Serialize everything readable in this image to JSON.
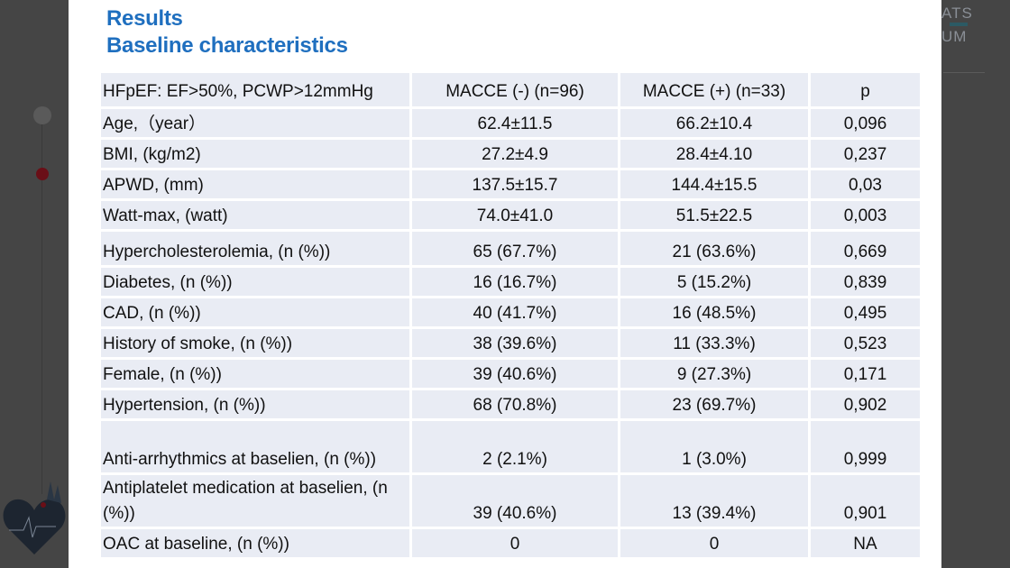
{
  "slide": {
    "title_line1": "Results",
    "title_line2": "Baseline characteristics"
  },
  "background": {
    "logo_fragment_top": "ATS",
    "logo_fragment_bottom": "UM"
  },
  "table": {
    "headers": [
      "HFpEF: EF>50%, PCWP>12mmHg",
      "MACCE (-) (n=96)",
      "MACCE (+) (n=33)",
      "p"
    ],
    "rows": [
      [
        "Age,（year）",
        "62.4±11.5",
        "66.2±10.4",
        "0,096"
      ],
      [
        "BMI, (kg/m2)",
        "27.2±4.9",
        "28.4±4.10",
        "0,237"
      ],
      [
        "APWD, (mm)",
        "137.5±15.7",
        "144.4±15.5",
        "0,03"
      ],
      [
        "Watt-max, (watt)",
        "74.0±41.0",
        "51.5±22.5",
        "0,003"
      ],
      [
        "Hypercholesterolemia, (n (%))",
        "65 (67.7%)",
        "21 (63.6%)",
        "0,669"
      ],
      [
        "Diabetes, (n (%))",
        "16 (16.7%)",
        "5 (15.2%)",
        "0,839"
      ],
      [
        "CAD, (n (%))",
        "40 (41.7%)",
        "16 (48.5%)",
        "0,495"
      ],
      [
        "History of smoke, (n (%))",
        "38 (39.6%)",
        "11 (33.3%)",
        "0,523"
      ],
      [
        "Female, (n (%))",
        "39 (40.6%)",
        "9 (27.3%)",
        "0,171"
      ],
      [
        "Hypertension, (n (%))",
        "68 (70.8%)",
        "23 (69.7%)",
        "0,902"
      ],
      [
        "Anti-arrhythmics at baselien, (n (%))",
        "2 (2.1%)",
        "1 (3.0%)",
        "0,999"
      ],
      [
        "Antiplatelet medication at baselien, (n (%))",
        "39 (40.6%)",
        "13 (39.4%)",
        "0,901"
      ],
      [
        "OAC at baseline, (n (%))",
        "0",
        "0",
        "NA"
      ]
    ]
  },
  "colors": {
    "title": "#1f6fbf",
    "cell": "#e9ecf4",
    "overlay": "#454545"
  }
}
